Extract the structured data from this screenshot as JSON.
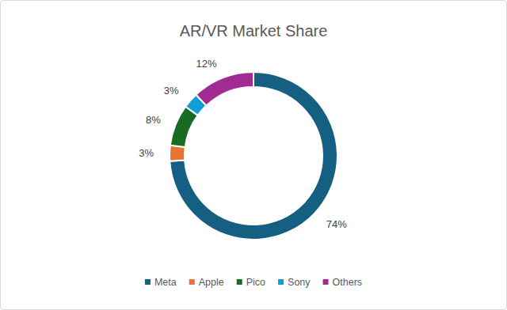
{
  "chart_data": {
    "type": "pie",
    "title": "AR/VR Market Share",
    "categories": [
      "Meta",
      "Apple",
      "Pico",
      "Sony",
      "Others"
    ],
    "values": [
      74,
      3,
      8,
      3,
      12
    ],
    "value_labels": [
      "74%",
      "3%",
      "8%",
      "3%",
      "12%"
    ],
    "colors": [
      "#156082",
      "#e97132",
      "#196b24",
      "#0f9ed5",
      "#a02b93"
    ],
    "data_labels": true,
    "legend": "bottom"
  }
}
